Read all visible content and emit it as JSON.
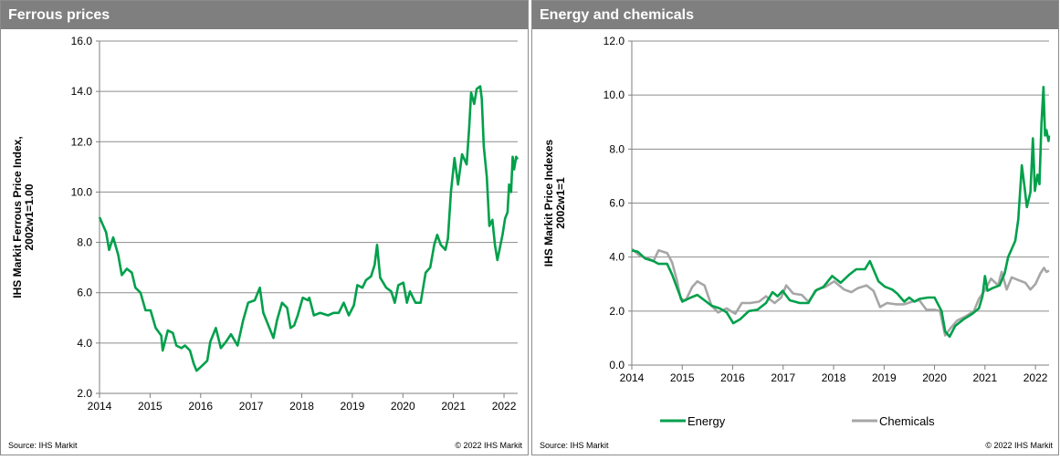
{
  "chart_data": [
    {
      "type": "line",
      "title": "Ferrous prices",
      "ylabel": [
        "IHS Markit Ferrous Price Index,",
        "2002w1=1.00"
      ],
      "xlabel": "",
      "xlim": [
        2014,
        2022.27
      ],
      "ylim": [
        2.0,
        16.0
      ],
      "yticks": [
        "2.0",
        "4.0",
        "6.0",
        "8.0",
        "10.0",
        "12.0",
        "14.0",
        "16.0"
      ],
      "xticks": [
        "2014",
        "2015",
        "2016",
        "2017",
        "2018",
        "2019",
        "2020",
        "2021",
        "2022"
      ],
      "grid": "horizontal",
      "legend": "none",
      "source": "Source:  IHS Markit",
      "copyright": "© 2022  IHS Markit",
      "series": [
        {
          "color": "#00a04b",
          "points": [
            [
              2014,
              9.0
            ],
            [
              2014.13,
              8.4
            ],
            [
              2014.19,
              7.7
            ],
            [
              2014.27,
              8.2
            ],
            [
              2014.37,
              7.5
            ],
            [
              2014.44,
              6.7
            ],
            [
              2014.54,
              6.95
            ],
            [
              2014.64,
              6.8
            ],
            [
              2014.71,
              6.2
            ],
            [
              2014.81,
              6.0
            ],
            [
              2014.91,
              5.3
            ],
            [
              2015.01,
              5.3
            ],
            [
              2015.11,
              4.6
            ],
            [
              2015.22,
              4.3
            ],
            [
              2015.25,
              3.7
            ],
            [
              2015.35,
              4.5
            ],
            [
              2015.45,
              4.4
            ],
            [
              2015.52,
              3.9
            ],
            [
              2015.62,
              3.8
            ],
            [
              2015.69,
              3.9
            ],
            [
              2015.79,
              3.7
            ],
            [
              2015.86,
              3.2
            ],
            [
              2015.92,
              2.9
            ],
            [
              2016.03,
              3.1
            ],
            [
              2016.13,
              3.3
            ],
            [
              2016.19,
              4.05
            ],
            [
              2016.3,
              4.6
            ],
            [
              2016.4,
              3.8
            ],
            [
              2016.5,
              4.05
            ],
            [
              2016.6,
              4.35
            ],
            [
              2016.73,
              3.9
            ],
            [
              2016.84,
              4.9
            ],
            [
              2016.94,
              5.6
            ],
            [
              2017.07,
              5.7
            ],
            [
              2017.17,
              6.2
            ],
            [
              2017.24,
              5.2
            ],
            [
              2017.34,
              4.7
            ],
            [
              2017.44,
              4.2
            ],
            [
              2017.51,
              4.9
            ],
            [
              2017.61,
              5.6
            ],
            [
              2017.71,
              5.4
            ],
            [
              2017.78,
              4.6
            ],
            [
              2017.85,
              4.7
            ],
            [
              2017.92,
              5.1
            ],
            [
              2018.02,
              5.8
            ],
            [
              2018.12,
              5.7
            ],
            [
              2018.15,
              5.8
            ],
            [
              2018.24,
              5.1
            ],
            [
              2018.36,
              5.2
            ],
            [
              2018.52,
              5.1
            ],
            [
              2018.63,
              5.2
            ],
            [
              2018.73,
              5.2
            ],
            [
              2018.83,
              5.6
            ],
            [
              2018.93,
              5.1
            ],
            [
              2019.03,
              5.5
            ],
            [
              2019.1,
              6.3
            ],
            [
              2019.2,
              6.2
            ],
            [
              2019.27,
              6.5
            ],
            [
              2019.37,
              6.65
            ],
            [
              2019.44,
              7.1
            ],
            [
              2019.49,
              7.9
            ],
            [
              2019.55,
              6.6
            ],
            [
              2019.67,
              6.2
            ],
            [
              2019.77,
              6.05
            ],
            [
              2019.84,
              5.6
            ],
            [
              2019.91,
              6.3
            ],
            [
              2020.01,
              6.4
            ],
            [
              2020.08,
              5.6
            ],
            [
              2020.14,
              6.05
            ],
            [
              2020.25,
              5.6
            ],
            [
              2020.35,
              5.6
            ],
            [
              2020.45,
              6.8
            ],
            [
              2020.54,
              7.0
            ],
            [
              2020.62,
              7.9
            ],
            [
              2020.68,
              8.3
            ],
            [
              2020.75,
              7.9
            ],
            [
              2020.84,
              7.7
            ],
            [
              2020.89,
              8.15
            ],
            [
              2020.95,
              10.0
            ],
            [
              2021.02,
              11.35
            ],
            [
              2021.09,
              10.3
            ],
            [
              2021.17,
              11.5
            ],
            [
              2021.26,
              11.1
            ],
            [
              2021.31,
              12.5
            ],
            [
              2021.35,
              13.95
            ],
            [
              2021.41,
              13.5
            ],
            [
              2021.46,
              14.1
            ],
            [
              2021.53,
              14.2
            ],
            [
              2021.56,
              13.7
            ],
            [
              2021.6,
              11.8
            ],
            [
              2021.66,
              10.6
            ],
            [
              2021.71,
              8.65
            ],
            [
              2021.77,
              8.9
            ],
            [
              2021.82,
              7.9
            ],
            [
              2021.87,
              7.3
            ],
            [
              2021.97,
              8.3
            ],
            [
              2022.02,
              8.95
            ],
            [
              2022.07,
              9.2
            ],
            [
              2022.1,
              10.3
            ],
            [
              2022.14,
              10.0
            ],
            [
              2022.17,
              11.4
            ],
            [
              2022.2,
              10.9
            ],
            [
              2022.24,
              11.4
            ],
            [
              2022.27,
              11.3
            ]
          ]
        }
      ]
    },
    {
      "type": "line",
      "title": "Energy and chemicals",
      "ylabel": [
        "IHS Markit Price Indexes",
        "2002w1=1"
      ],
      "xlabel": "",
      "xlim": [
        2014,
        2022.27
      ],
      "ylim": [
        0.0,
        12.0
      ],
      "yticks": [
        "0.0",
        "2.0",
        "4.0",
        "6.0",
        "8.0",
        "10.0",
        "12.0"
      ],
      "xticks": [
        "2014",
        "2015",
        "2016",
        "2017",
        "2018",
        "2019",
        "2020",
        "2021",
        "2022"
      ],
      "grid": "horizontal",
      "legend": "bottom",
      "source": "Source:  IHS Markit",
      "copyright": "© 2022  IHS Markit",
      "series": [
        {
          "name": "Energy",
          "color": "#00a04b",
          "points": [
            [
              2014,
              4.25
            ],
            [
              2014.12,
              4.2
            ],
            [
              2014.26,
              3.95
            ],
            [
              2014.43,
              3.85
            ],
            [
              2014.53,
              3.75
            ],
            [
              2014.7,
              3.75
            ],
            [
              2014.8,
              3.35
            ],
            [
              2014.9,
              2.85
            ],
            [
              2015.0,
              2.35
            ],
            [
              2015.17,
              2.5
            ],
            [
              2015.3,
              2.6
            ],
            [
              2015.44,
              2.4
            ],
            [
              2015.58,
              2.2
            ],
            [
              2015.74,
              2.1
            ],
            [
              2015.88,
              1.95
            ],
            [
              2016.01,
              1.55
            ],
            [
              2016.15,
              1.7
            ],
            [
              2016.32,
              2.0
            ],
            [
              2016.49,
              2.05
            ],
            [
              2016.66,
              2.3
            ],
            [
              2016.79,
              2.7
            ],
            [
              2016.89,
              2.55
            ],
            [
              2016.99,
              2.75
            ],
            [
              2017.13,
              2.4
            ],
            [
              2017.33,
              2.3
            ],
            [
              2017.5,
              2.3
            ],
            [
              2017.64,
              2.75
            ],
            [
              2017.8,
              2.9
            ],
            [
              2017.97,
              3.3
            ],
            [
              2018.14,
              3.05
            ],
            [
              2018.31,
              3.35
            ],
            [
              2018.45,
              3.55
            ],
            [
              2018.62,
              3.55
            ],
            [
              2018.72,
              3.85
            ],
            [
              2018.89,
              3.1
            ],
            [
              2019.02,
              2.9
            ],
            [
              2019.16,
              2.8
            ],
            [
              2019.26,
              2.65
            ],
            [
              2019.4,
              2.35
            ],
            [
              2019.5,
              2.5
            ],
            [
              2019.6,
              2.35
            ],
            [
              2019.7,
              2.45
            ],
            [
              2019.87,
              2.5
            ],
            [
              2020.0,
              2.5
            ],
            [
              2020.14,
              2.0
            ],
            [
              2020.21,
              1.25
            ],
            [
              2020.3,
              1.05
            ],
            [
              2020.41,
              1.45
            ],
            [
              2020.58,
              1.7
            ],
            [
              2020.75,
              1.9
            ],
            [
              2020.88,
              2.1
            ],
            [
              2020.95,
              2.55
            ],
            [
              2021.0,
              3.3
            ],
            [
              2021.05,
              2.75
            ],
            [
              2021.15,
              2.85
            ],
            [
              2021.29,
              2.95
            ],
            [
              2021.39,
              3.4
            ],
            [
              2021.46,
              4.0
            ],
            [
              2021.6,
              4.6
            ],
            [
              2021.66,
              5.4
            ],
            [
              2021.73,
              7.4
            ],
            [
              2021.79,
              6.5
            ],
            [
              2021.83,
              5.85
            ],
            [
              2021.9,
              6.4
            ],
            [
              2021.95,
              8.4
            ],
            [
              2021.99,
              6.45
            ],
            [
              2022.04,
              7.05
            ],
            [
              2022.08,
              6.7
            ],
            [
              2022.12,
              8.95
            ],
            [
              2022.16,
              10.3
            ],
            [
              2022.19,
              8.5
            ],
            [
              2022.22,
              8.7
            ],
            [
              2022.26,
              8.3
            ],
            [
              2022.27,
              8.5
            ]
          ]
        },
        {
          "name": "Chemicals",
          "color": "#a6a6a6",
          "points": [
            [
              2014,
              4.3
            ],
            [
              2014.16,
              4.05
            ],
            [
              2014.32,
              3.95
            ],
            [
              2014.43,
              3.85
            ],
            [
              2014.53,
              4.25
            ],
            [
              2014.7,
              4.15
            ],
            [
              2014.8,
              3.8
            ],
            [
              2014.9,
              3.1
            ],
            [
              2014.97,
              2.45
            ],
            [
              2015.07,
              2.4
            ],
            [
              2015.2,
              2.9
            ],
            [
              2015.3,
              3.1
            ],
            [
              2015.44,
              2.95
            ],
            [
              2015.58,
              2.2
            ],
            [
              2015.71,
              1.95
            ],
            [
              2015.88,
              2.1
            ],
            [
              2016.05,
              1.9
            ],
            [
              2016.18,
              2.3
            ],
            [
              2016.35,
              2.3
            ],
            [
              2016.52,
              2.35
            ],
            [
              2016.66,
              2.55
            ],
            [
              2016.83,
              2.3
            ],
            [
              2016.96,
              2.5
            ],
            [
              2017.06,
              2.95
            ],
            [
              2017.2,
              2.65
            ],
            [
              2017.37,
              2.6
            ],
            [
              2017.5,
              2.35
            ],
            [
              2017.67,
              2.8
            ],
            [
              2017.84,
              2.9
            ],
            [
              2018.01,
              3.1
            ],
            [
              2018.21,
              2.8
            ],
            [
              2018.35,
              2.7
            ],
            [
              2018.48,
              2.85
            ],
            [
              2018.65,
              2.95
            ],
            [
              2018.79,
              2.75
            ],
            [
              2018.92,
              2.15
            ],
            [
              2019.06,
              2.3
            ],
            [
              2019.23,
              2.25
            ],
            [
              2019.4,
              2.25
            ],
            [
              2019.56,
              2.35
            ],
            [
              2019.7,
              2.4
            ],
            [
              2019.84,
              2.05
            ],
            [
              2020.0,
              2.05
            ],
            [
              2020.11,
              2.0
            ],
            [
              2020.21,
              1.1
            ],
            [
              2020.31,
              1.35
            ],
            [
              2020.45,
              1.65
            ],
            [
              2020.61,
              1.8
            ],
            [
              2020.78,
              2.0
            ],
            [
              2020.88,
              2.45
            ],
            [
              2020.99,
              2.75
            ],
            [
              2021.12,
              3.2
            ],
            [
              2021.26,
              2.95
            ],
            [
              2021.33,
              3.45
            ],
            [
              2021.43,
              2.8
            ],
            [
              2021.53,
              3.25
            ],
            [
              2021.66,
              3.15
            ],
            [
              2021.8,
              3.05
            ],
            [
              2021.9,
              2.8
            ],
            [
              2022.0,
              3.0
            ],
            [
              2022.1,
              3.4
            ],
            [
              2022.17,
              3.6
            ],
            [
              2022.22,
              3.45
            ],
            [
              2022.27,
              3.5
            ]
          ]
        }
      ]
    }
  ]
}
